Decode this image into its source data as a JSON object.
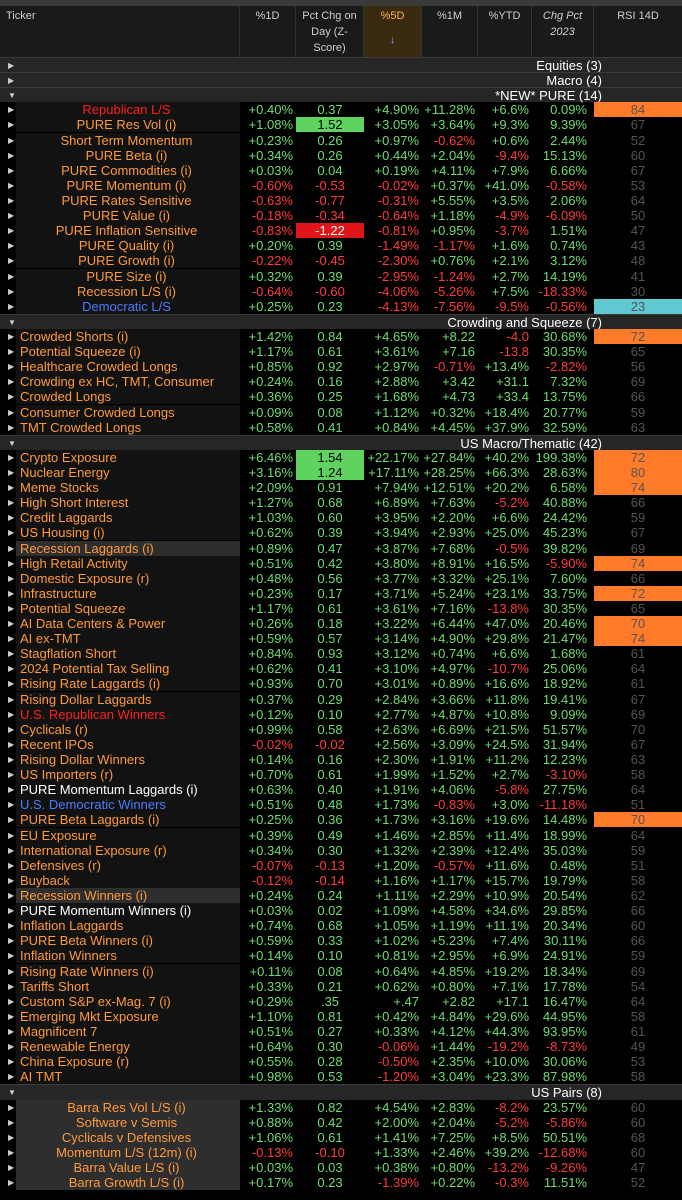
{
  "header": {
    "ticker": "Ticker",
    "d1": "%1D",
    "pct_chg_day": "Pct Chg on Day (Z-Score)",
    "d5": "%5D",
    "m1": "%1M",
    "ytd": "%YTD",
    "chg2023": "Chg Pct 2023",
    "rsi": "RSI 14D"
  },
  "colors": {
    "positive": "#6fdc6f",
    "negative": "#ff3b3b",
    "ticker": "#ff9a3c",
    "rsi_high": "#ff7a29",
    "rsi_low": "#5fc8d0",
    "z_high": "#5fd35f",
    "z_low": "#e0151a"
  },
  "icons": {
    "collapsed": "triangle-right-icon",
    "expanded": "triangle-down-icon",
    "sort": "arrow-down-icon"
  },
  "rows": [
    {
      "kind": "group",
      "name": "Equities (3)",
      "expanded": false
    },
    {
      "kind": "group",
      "name": "Macro (4)",
      "expanded": false
    },
    {
      "kind": "group",
      "name": "*NEW* PURE (14)",
      "expanded": true
    },
    {
      "kind": "item",
      "name": "Republican L/S",
      "style": "redlbl",
      "center": true,
      "d1": "+0.40%",
      "z": "0.37",
      "d5": "+4.90%",
      "m1": "+11.28%",
      "ytd": "+6.6%",
      "y23": "0.09%",
      "rsi": "84",
      "rsi_hl": "hi"
    },
    {
      "kind": "item",
      "name": "PURE Res Vol (i)",
      "center": true,
      "d1": "+1.08%",
      "z": "1.52",
      "z_hl": "hi",
      "d5": "+3.05%",
      "m1": "+3.64%",
      "ytd": "+9.3%",
      "y23": "9.39%",
      "rsi": "67"
    },
    {
      "kind": "item",
      "name": "Short Term Momentum",
      "center": true,
      "d1": "+0.23%",
      "z": "0.26",
      "d5": "+0.97%",
      "m1": "-0.62%",
      "ytd": "+0.6%",
      "y23": "2.44%",
      "rsi": "52"
    },
    {
      "kind": "item",
      "name": "PURE Beta (i)",
      "center": true,
      "d1": "+0.34%",
      "z": "0.26",
      "d5": "+0.44%",
      "m1": "+2.04%",
      "ytd": "-9.4%",
      "y23": "15.13%",
      "rsi": "60"
    },
    {
      "kind": "item",
      "name": "PURE Commodities (i)",
      "center": true,
      "d1": "+0.03%",
      "z": "0.04",
      "d5": "+0.19%",
      "m1": "+4.11%",
      "ytd": "+7.9%",
      "y23": "6.66%",
      "rsi": "67"
    },
    {
      "kind": "item",
      "name": "PURE Momentum (i)",
      "center": true,
      "d1": "-0.60%",
      "z": "-0.53",
      "d5": "-0.02%",
      "m1": "+0.37%",
      "ytd": "+41.0%",
      "y23": "-0.58%",
      "rsi": "53"
    },
    {
      "kind": "item",
      "name": "PURE Rates Sensitive",
      "center": true,
      "d1": "-0.63%",
      "z": "-0.77",
      "d5": "-0.31%",
      "m1": "+5.55%",
      "ytd": "+3.5%",
      "y23": "2.06%",
      "rsi": "64"
    },
    {
      "kind": "item",
      "name": "PURE Value (i)",
      "center": true,
      "d1": "-0.18%",
      "z": "-0.34",
      "d5": "-0.64%",
      "m1": "+1.18%",
      "ytd": "-4.9%",
      "y23": "-6.09%",
      "rsi": "50"
    },
    {
      "kind": "item",
      "name": "PURE Inflation Sensitive",
      "center": true,
      "d1": "-0.83%",
      "z": "-1.22",
      "z_hl": "lo",
      "d5": "-0.81%",
      "m1": "+0.95%",
      "ytd": "-3.7%",
      "y23": "1.51%",
      "rsi": "47"
    },
    {
      "kind": "item",
      "name": "PURE Quality (i)",
      "center": true,
      "d1": "+0.20%",
      "z": "0.39",
      "d5": "-1.49%",
      "m1": "-1.17%",
      "ytd": "+1.6%",
      "y23": "0.74%",
      "rsi": "43"
    },
    {
      "kind": "item",
      "name": "PURE Growth (i)",
      "center": true,
      "d1": "-0.22%",
      "z": "-0.45",
      "d5": "-2.30%",
      "m1": "+0.76%",
      "ytd": "+2.1%",
      "y23": "3.12%",
      "rsi": "48"
    },
    {
      "kind": "item",
      "name": "PURE Size (i)",
      "center": true,
      "d1": "+0.32%",
      "z": "0.39",
      "d5": "-2.95%",
      "m1": "-1.24%",
      "ytd": "+2.7%",
      "y23": "14.19%",
      "rsi": "41"
    },
    {
      "kind": "item",
      "name": "Recession L/S (i)",
      "center": true,
      "d1": "-0.64%",
      "z": "-0.60",
      "d5": "-4.06%",
      "m1": "-5.26%",
      "ytd": "+7.5%",
      "y23": "-18.33%",
      "rsi": "30"
    },
    {
      "kind": "item",
      "name": "Democratic L/S",
      "style": "bluelbl",
      "center": true,
      "d1": "+0.25%",
      "z": "0.23",
      "d5": "-4.13%",
      "m1": "-7.56%",
      "ytd": "-9.5%",
      "y23": "-0.56%",
      "rsi": "23",
      "rsi_hl": "lo"
    },
    {
      "kind": "group",
      "name": "Crowding and Squeeze (7)",
      "expanded": true
    },
    {
      "kind": "item",
      "name": "Crowded Shorts (i)",
      "d1": "+1.42%",
      "z": "0.84",
      "d5": "+4.65%",
      "m1": "+8.22",
      "ytd": "-4.0",
      "y23": "30.68%",
      "rsi": "72",
      "rsi_hl": "hi"
    },
    {
      "kind": "item",
      "name": "Potential Squeeze (i)",
      "d1": "+1.17%",
      "z": "0.61",
      "d5": "+3.61%",
      "m1": "+7.16",
      "ytd": "-13.8",
      "y23": "30.35%",
      "rsi": "65"
    },
    {
      "kind": "item",
      "name": "Healthcare Crowded Longs",
      "d1": "+0.85%",
      "z": "0.92",
      "d5": "+2.97%",
      "m1": "-0.71%",
      "ytd": "+13.4%",
      "y23": "-2.82%",
      "rsi": "56"
    },
    {
      "kind": "item",
      "name": "Crowding ex HC, TMT, Consumer",
      "d1": "+0.24%",
      "z": "0.16",
      "d5": "+2.88%",
      "m1": "+3.42",
      "ytd": "+31.1",
      "y23": "7.32%",
      "rsi": "69"
    },
    {
      "kind": "item",
      "name": "Crowded Longs",
      "d1": "+0.36%",
      "z": "0.25",
      "d5": "+1.68%",
      "m1": "+4.73",
      "ytd": "+33.4",
      "y23": "13.75%",
      "rsi": "66"
    },
    {
      "kind": "item",
      "name": "Consumer Crowded Longs",
      "d1": "+0.09%",
      "z": "0.08",
      "d5": "+1.12%",
      "m1": "+0.32%",
      "ytd": "+18.4%",
      "y23": "20.77%",
      "rsi": "59"
    },
    {
      "kind": "item",
      "name": "TMT Crowded Longs",
      "d1": "+0.58%",
      "z": "0.41",
      "d5": "+0.84%",
      "m1": "+4.45%",
      "ytd": "+37.9%",
      "y23": "32.59%",
      "rsi": "63"
    },
    {
      "kind": "group",
      "name": "US Macro/Thematic (42)",
      "expanded": true
    },
    {
      "kind": "item",
      "name": "Crypto Exposure",
      "d1": "+6.46%",
      "z": "1.54",
      "z_hl": "hi",
      "d5": "+22.17%",
      "m1": "+27.84%",
      "ytd": "+40.2%",
      "y23": "199.38%",
      "rsi": "72",
      "rsi_hl": "hi"
    },
    {
      "kind": "item",
      "name": "Nuclear Energy",
      "d1": "+3.16%",
      "z": "1.24",
      "z_hl": "hi",
      "d5": "+17.11%",
      "m1": "+28.25%",
      "ytd": "+66.3%",
      "y23": "28.63%",
      "rsi": "80",
      "rsi_hl": "hi"
    },
    {
      "kind": "item",
      "name": "Meme Stocks",
      "d1": "+2.09%",
      "z": "0.91",
      "d5": "+7.94%",
      "m1": "+12.51%",
      "ytd": "+20.2%",
      "y23": "6.58%",
      "rsi": "74",
      "rsi_hl": "hi"
    },
    {
      "kind": "item",
      "name": "High Short Interest",
      "d1": "+1.27%",
      "z": "0.68",
      "d5": "+6.89%",
      "m1": "+7.63%",
      "ytd": "-5.2%",
      "y23": "40.88%",
      "rsi": "66"
    },
    {
      "kind": "item",
      "name": "Credit Laggards",
      "d1": "+1.03%",
      "z": "0.60",
      "d5": "+3.95%",
      "m1": "+2.20%",
      "ytd": "+6.6%",
      "y23": "24.42%",
      "rsi": "59"
    },
    {
      "kind": "item",
      "name": "US Housing (i)",
      "d1": "+0.62%",
      "z": "0.39",
      "d5": "+3.94%",
      "m1": "+2.93%",
      "ytd": "+25.0%",
      "y23": "45.23%",
      "rsi": "67"
    },
    {
      "kind": "item",
      "name": "Recession Laggards (i)",
      "style": "grey",
      "d1": "+0.89%",
      "z": "0.47",
      "d5": "+3.87%",
      "m1": "+7.68%",
      "ytd": "-0.5%",
      "y23": "39.82%",
      "rsi": "69"
    },
    {
      "kind": "item",
      "name": "High Retail Activity",
      "d1": "+0.51%",
      "z": "0.42",
      "d5": "+3.80%",
      "m1": "+8.91%",
      "ytd": "+16.5%",
      "y23": "-5.90%",
      "rsi": "74",
      "rsi_hl": "hi"
    },
    {
      "kind": "item",
      "name": "Domestic Exposure (r)",
      "d1": "+0.48%",
      "z": "0.56",
      "d5": "+3.77%",
      "m1": "+3.32%",
      "ytd": "+25.1%",
      "y23": "7.60%",
      "rsi": "66"
    },
    {
      "kind": "item",
      "name": "Infrastructure",
      "d1": "+0.23%",
      "z": "0.17",
      "d5": "+3.71%",
      "m1": "+5.24%",
      "ytd": "+23.1%",
      "y23": "33.75%",
      "rsi": "72",
      "rsi_hl": "hi"
    },
    {
      "kind": "item",
      "name": "Potential Squeeze",
      "d1": "+1.17%",
      "z": "0.61",
      "d5": "+3.61%",
      "m1": "+7.16%",
      "ytd": "-13.8%",
      "y23": "30.35%",
      "rsi": "65"
    },
    {
      "kind": "item",
      "name": "AI Data Centers & Power",
      "d1": "+0.26%",
      "z": "0.18",
      "d5": "+3.22%",
      "m1": "+6.44%",
      "ytd": "+47.0%",
      "y23": "20.46%",
      "rsi": "70",
      "rsi_hl": "hi"
    },
    {
      "kind": "item",
      "name": "AI ex-TMT",
      "d1": "+0.59%",
      "z": "0.57",
      "d5": "+3.14%",
      "m1": "+4.90%",
      "ytd": "+29.8%",
      "y23": "21.47%",
      "rsi": "74",
      "rsi_hl": "hi"
    },
    {
      "kind": "item",
      "name": "Stagflation Short",
      "d1": "+0.84%",
      "z": "0.93",
      "d5": "+3.12%",
      "m1": "+0.74%",
      "ytd": "+6.6%",
      "y23": "1.68%",
      "rsi": "61"
    },
    {
      "kind": "item",
      "name": "2024 Potential Tax Selling",
      "d1": "+0.62%",
      "z": "0.41",
      "d5": "+3.10%",
      "m1": "+4.97%",
      "ytd": "-10.7%",
      "y23": "25.06%",
      "rsi": "64"
    },
    {
      "kind": "item",
      "name": "Rising Rate Laggards (i)",
      "d1": "+0.93%",
      "z": "0.70",
      "d5": "+3.01%",
      "m1": "+0.89%",
      "ytd": "+16.6%",
      "y23": "18.92%",
      "rsi": "61"
    },
    {
      "kind": "item",
      "name": "Rising Dollar Laggards",
      "d1": "+0.37%",
      "z": "0.29",
      "d5": "+2.84%",
      "m1": "+3.66%",
      "ytd": "+11.8%",
      "y23": "19.41%",
      "rsi": "67"
    },
    {
      "kind": "item",
      "name": "U.S. Republican Winners",
      "style": "red",
      "d1": "+0.12%",
      "z": "0.10",
      "d5": "+2.77%",
      "m1": "+4.87%",
      "ytd": "+10.8%",
      "y23": "9.09%",
      "rsi": "69"
    },
    {
      "kind": "item",
      "name": "Cyclicals (r)",
      "d1": "+0.99%",
      "z": "0.58",
      "d5": "+2.63%",
      "m1": "+6.69%",
      "ytd": "+21.5%",
      "y23": "51.57%",
      "rsi": "70"
    },
    {
      "kind": "item",
      "name": "Recent IPOs",
      "d1": "-0.02%",
      "z": "-0.02",
      "d5": "+2.56%",
      "m1": "+3.09%",
      "ytd": "+24.5%",
      "y23": "31.94%",
      "rsi": "67"
    },
    {
      "kind": "item",
      "name": "Rising Dollar Winners",
      "d1": "+0.14%",
      "z": "0.16",
      "d5": "+2.30%",
      "m1": "+1.91%",
      "ytd": "+11.2%",
      "y23": "12.23%",
      "rsi": "63"
    },
    {
      "kind": "item",
      "name": "US Importers (r)",
      "d1": "+0.70%",
      "z": "0.61",
      "d5": "+1.99%",
      "m1": "+1.52%",
      "ytd": "+2.7%",
      "y23": "-3.10%",
      "rsi": "58"
    },
    {
      "kind": "item",
      "name": "PURE Momentum Laggards (i)",
      "style": "white",
      "d1": "+0.63%",
      "z": "0.40",
      "d5": "+1.91%",
      "m1": "+4.06%",
      "ytd": "-5.8%",
      "y23": "27.75%",
      "rsi": "64"
    },
    {
      "kind": "item",
      "name": "U.S. Democratic Winners",
      "style": "blue",
      "d1": "+0.51%",
      "z": "0.48",
      "d5": "+1.73%",
      "m1": "-0.83%",
      "ytd": "+3.0%",
      "y23": "-11.18%",
      "rsi": "51"
    },
    {
      "kind": "item",
      "name": "PURE Beta Laggards (i)",
      "d1": "+0.25%",
      "z": "0.36",
      "d5": "+1.73%",
      "m1": "+3.16%",
      "ytd": "+19.6%",
      "y23": "14.48%",
      "rsi": "70",
      "rsi_hl": "hi"
    },
    {
      "kind": "item",
      "name": "EU Exposure",
      "d1": "+0.39%",
      "z": "0.49",
      "d5": "+1.46%",
      "m1": "+2.85%",
      "ytd": "+11.4%",
      "y23": "18.99%",
      "rsi": "64"
    },
    {
      "kind": "item",
      "name": "International Exposure (r)",
      "d1": "+0.34%",
      "z": "0.30",
      "d5": "+1.32%",
      "m1": "+2.39%",
      "ytd": "+12.4%",
      "y23": "35.03%",
      "rsi": "59"
    },
    {
      "kind": "item",
      "name": "Defensives (r)",
      "d1": "-0.07%",
      "z": "-0.13",
      "d5": "+1.20%",
      "m1": "-0.57%",
      "ytd": "+11.6%",
      "y23": "0.48%",
      "rsi": "51"
    },
    {
      "kind": "item",
      "name": "Buyback",
      "d1": "-0.12%",
      "z": "-0.14",
      "d5": "+1.16%",
      "m1": "+1.17%",
      "ytd": "+15.7%",
      "y23": "19.79%",
      "rsi": "58"
    },
    {
      "kind": "item",
      "name": "Recession Winners (i)",
      "style": "grey",
      "d1": "+0.24%",
      "z": "0.24",
      "d5": "+1.11%",
      "m1": "+2.29%",
      "ytd": "+10.9%",
      "y23": "20.54%",
      "rsi": "62"
    },
    {
      "kind": "item",
      "name": "PURE Momentum Winners (i)",
      "style": "white",
      "d1": "+0.03%",
      "z": "0.02",
      "d5": "+1.09%",
      "m1": "+4.58%",
      "ytd": "+34.6%",
      "y23": "29.85%",
      "rsi": "66"
    },
    {
      "kind": "item",
      "name": "Inflation Laggards",
      "d1": "+0.74%",
      "z": "0.68",
      "d5": "+1.05%",
      "m1": "+1.19%",
      "ytd": "+11.1%",
      "y23": "20.34%",
      "rsi": "60"
    },
    {
      "kind": "item",
      "name": "PURE Beta Winners (i)",
      "d1": "+0.59%",
      "z": "0.33",
      "d5": "+1.02%",
      "m1": "+5.23%",
      "ytd": "+7.4%",
      "y23": "30.11%",
      "rsi": "66"
    },
    {
      "kind": "item",
      "name": "Inflation Winners",
      "d1": "+0.14%",
      "z": "0.10",
      "d5": "+0.81%",
      "m1": "+2.95%",
      "ytd": "+6.9%",
      "y23": "24.91%",
      "rsi": "59"
    },
    {
      "kind": "item",
      "name": "Rising Rate Winners (i)",
      "d1": "+0.11%",
      "z": "0.08",
      "d5": "+0.64%",
      "m1": "+4.85%",
      "ytd": "+19.2%",
      "y23": "18.34%",
      "rsi": "69"
    },
    {
      "kind": "item",
      "name": "Tariffs Short",
      "d1": "+0.33%",
      "z": "0.21",
      "d5": "+0.62%",
      "m1": "+0.80%",
      "ytd": "+7.1%",
      "y23": "17.78%",
      "rsi": "54"
    },
    {
      "kind": "item",
      "name": "Custom S&P ex-Mag. 7 (i)",
      "d1": "+0.29%",
      "z": ".35",
      "d5": "+.47",
      "m1": "+2.82",
      "ytd": "+17.1",
      "y23": "16.47%",
      "rsi": "64"
    },
    {
      "kind": "item",
      "name": "Emerging Mkt Exposure",
      "d1": "+1.10%",
      "z": "0.81",
      "d5": "+0.42%",
      "m1": "+4.84%",
      "ytd": "+29.6%",
      "y23": "44.95%",
      "rsi": "58"
    },
    {
      "kind": "item",
      "name": "Magnificent 7",
      "d1": "+0.51%",
      "z": "0.27",
      "d5": "+0.33%",
      "m1": "+4.12%",
      "ytd": "+44.3%",
      "y23": "93.95%",
      "rsi": "61"
    },
    {
      "kind": "item",
      "name": "Renewable Energy",
      "d1": "+0.64%",
      "z": "0.30",
      "d5": "-0.06%",
      "m1": "+1.44%",
      "ytd": "-19.2%",
      "y23": "-8.73%",
      "rsi": "49"
    },
    {
      "kind": "item",
      "name": "China Exposure (r)",
      "d1": "+0.55%",
      "z": "0.28",
      "d5": "-0.50%",
      "m1": "+2.35%",
      "ytd": "+10.0%",
      "y23": "30.06%",
      "rsi": "53"
    },
    {
      "kind": "item",
      "name": "AI TMT",
      "d1": "+0.98%",
      "z": "0.53",
      "d5": "-1.20%",
      "m1": "+3.04%",
      "ytd": "+23.3%",
      "y23": "87.98%",
      "rsi": "58"
    },
    {
      "kind": "group",
      "name": "US Pairs (8)",
      "expanded": true
    },
    {
      "kind": "item",
      "name": "Barra Res Vol L/S (i)",
      "style": "grey",
      "center": true,
      "d1": "+1.33%",
      "z": "0.82",
      "d5": "+4.54%",
      "m1": "+2.83%",
      "ytd": "-8.2%",
      "y23": "23.57%",
      "rsi": "60"
    },
    {
      "kind": "item",
      "name": "Software v Semis",
      "style": "grey",
      "center": true,
      "d1": "+0.88%",
      "z": "0.42",
      "d5": "+2.00%",
      "m1": "+2.04%",
      "ytd": "-5.2%",
      "y23": "-5.86%",
      "rsi": "60"
    },
    {
      "kind": "item",
      "name": "Cyclicals v Defensives",
      "style": "grey",
      "center": true,
      "d1": "+1.06%",
      "z": "0.61",
      "d5": "+1.41%",
      "m1": "+7.25%",
      "ytd": "+8.5%",
      "y23": "50.51%",
      "rsi": "68"
    },
    {
      "kind": "item",
      "name": "Momentum L/S (12m) (i)",
      "style": "grey",
      "center": true,
      "d1": "-0.13%",
      "z": "-0.10",
      "d5": "+1.33%",
      "m1": "+2.46%",
      "ytd": "+39.2%",
      "y23": "-12.68%",
      "rsi": "60"
    },
    {
      "kind": "item",
      "name": "Barra Value L/S (i)",
      "style": "grey",
      "center": true,
      "d1": "+0.03%",
      "z": "0.03",
      "d5": "+0.38%",
      "m1": "+0.80%",
      "ytd": "-13.2%",
      "y23": "-9.26%",
      "rsi": "47"
    },
    {
      "kind": "item",
      "name": "Barra Growth L/S (i)",
      "style": "grey",
      "center": true,
      "d1": "+0.17%",
      "z": "0.23",
      "d5": "-1.39%",
      "m1": "+0.22%",
      "ytd": "-0.3%",
      "y23": "11.51%",
      "rsi": "52"
    }
  ]
}
